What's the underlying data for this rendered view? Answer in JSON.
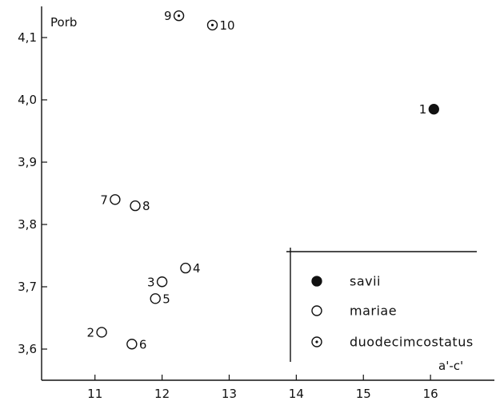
{
  "chart_data": {
    "type": "scatter",
    "xlabel": "a'-c'",
    "ylabel": "Porb",
    "xlim": [
      10.3,
      17.0
    ],
    "ylim": [
      3.55,
      4.15
    ],
    "x_ticks": [
      {
        "value": 11,
        "label": "11"
      },
      {
        "value": 12,
        "label": "12"
      },
      {
        "value": 13,
        "label": "13"
      },
      {
        "value": 14,
        "label": "14"
      },
      {
        "value": 15,
        "label": "15"
      },
      {
        "value": 16,
        "label": "16"
      }
    ],
    "y_ticks": [
      {
        "value": 3.6,
        "label": "3,6"
      },
      {
        "value": 3.7,
        "label": "3,7"
      },
      {
        "value": 3.8,
        "label": "3,8"
      },
      {
        "value": 3.9,
        "label": "3,9"
      },
      {
        "value": 4.0,
        "label": "4,0"
      },
      {
        "value": 4.1,
        "label": "4,1"
      }
    ],
    "grid": false,
    "legend_position": "bottom-right",
    "series": [
      {
        "name": "savii",
        "marker": "filled",
        "points": [
          {
            "label": "1",
            "x": 16.05,
            "y": 3.985,
            "label_side": "left"
          }
        ]
      },
      {
        "name": "mariae",
        "marker": "open",
        "points": [
          {
            "label": "2",
            "x": 11.1,
            "y": 3.627,
            "label_side": "left"
          },
          {
            "label": "3",
            "x": 12.0,
            "y": 3.708,
            "label_side": "left"
          },
          {
            "label": "4",
            "x": 12.35,
            "y": 3.73,
            "label_side": "right"
          },
          {
            "label": "5",
            "x": 11.9,
            "y": 3.681,
            "label_side": "right"
          },
          {
            "label": "6",
            "x": 11.55,
            "y": 3.608,
            "label_side": "right"
          },
          {
            "label": "7",
            "x": 11.3,
            "y": 3.84,
            "label_side": "left"
          },
          {
            "label": "8",
            "x": 11.6,
            "y": 3.83,
            "label_side": "right"
          }
        ]
      },
      {
        "name": "duodecimcostatus",
        "marker": "dotted",
        "points": [
          {
            "label": "9",
            "x": 12.25,
            "y": 4.135,
            "label_side": "left"
          },
          {
            "label": "10",
            "x": 12.75,
            "y": 4.12,
            "label_side": "right"
          }
        ]
      }
    ]
  }
}
